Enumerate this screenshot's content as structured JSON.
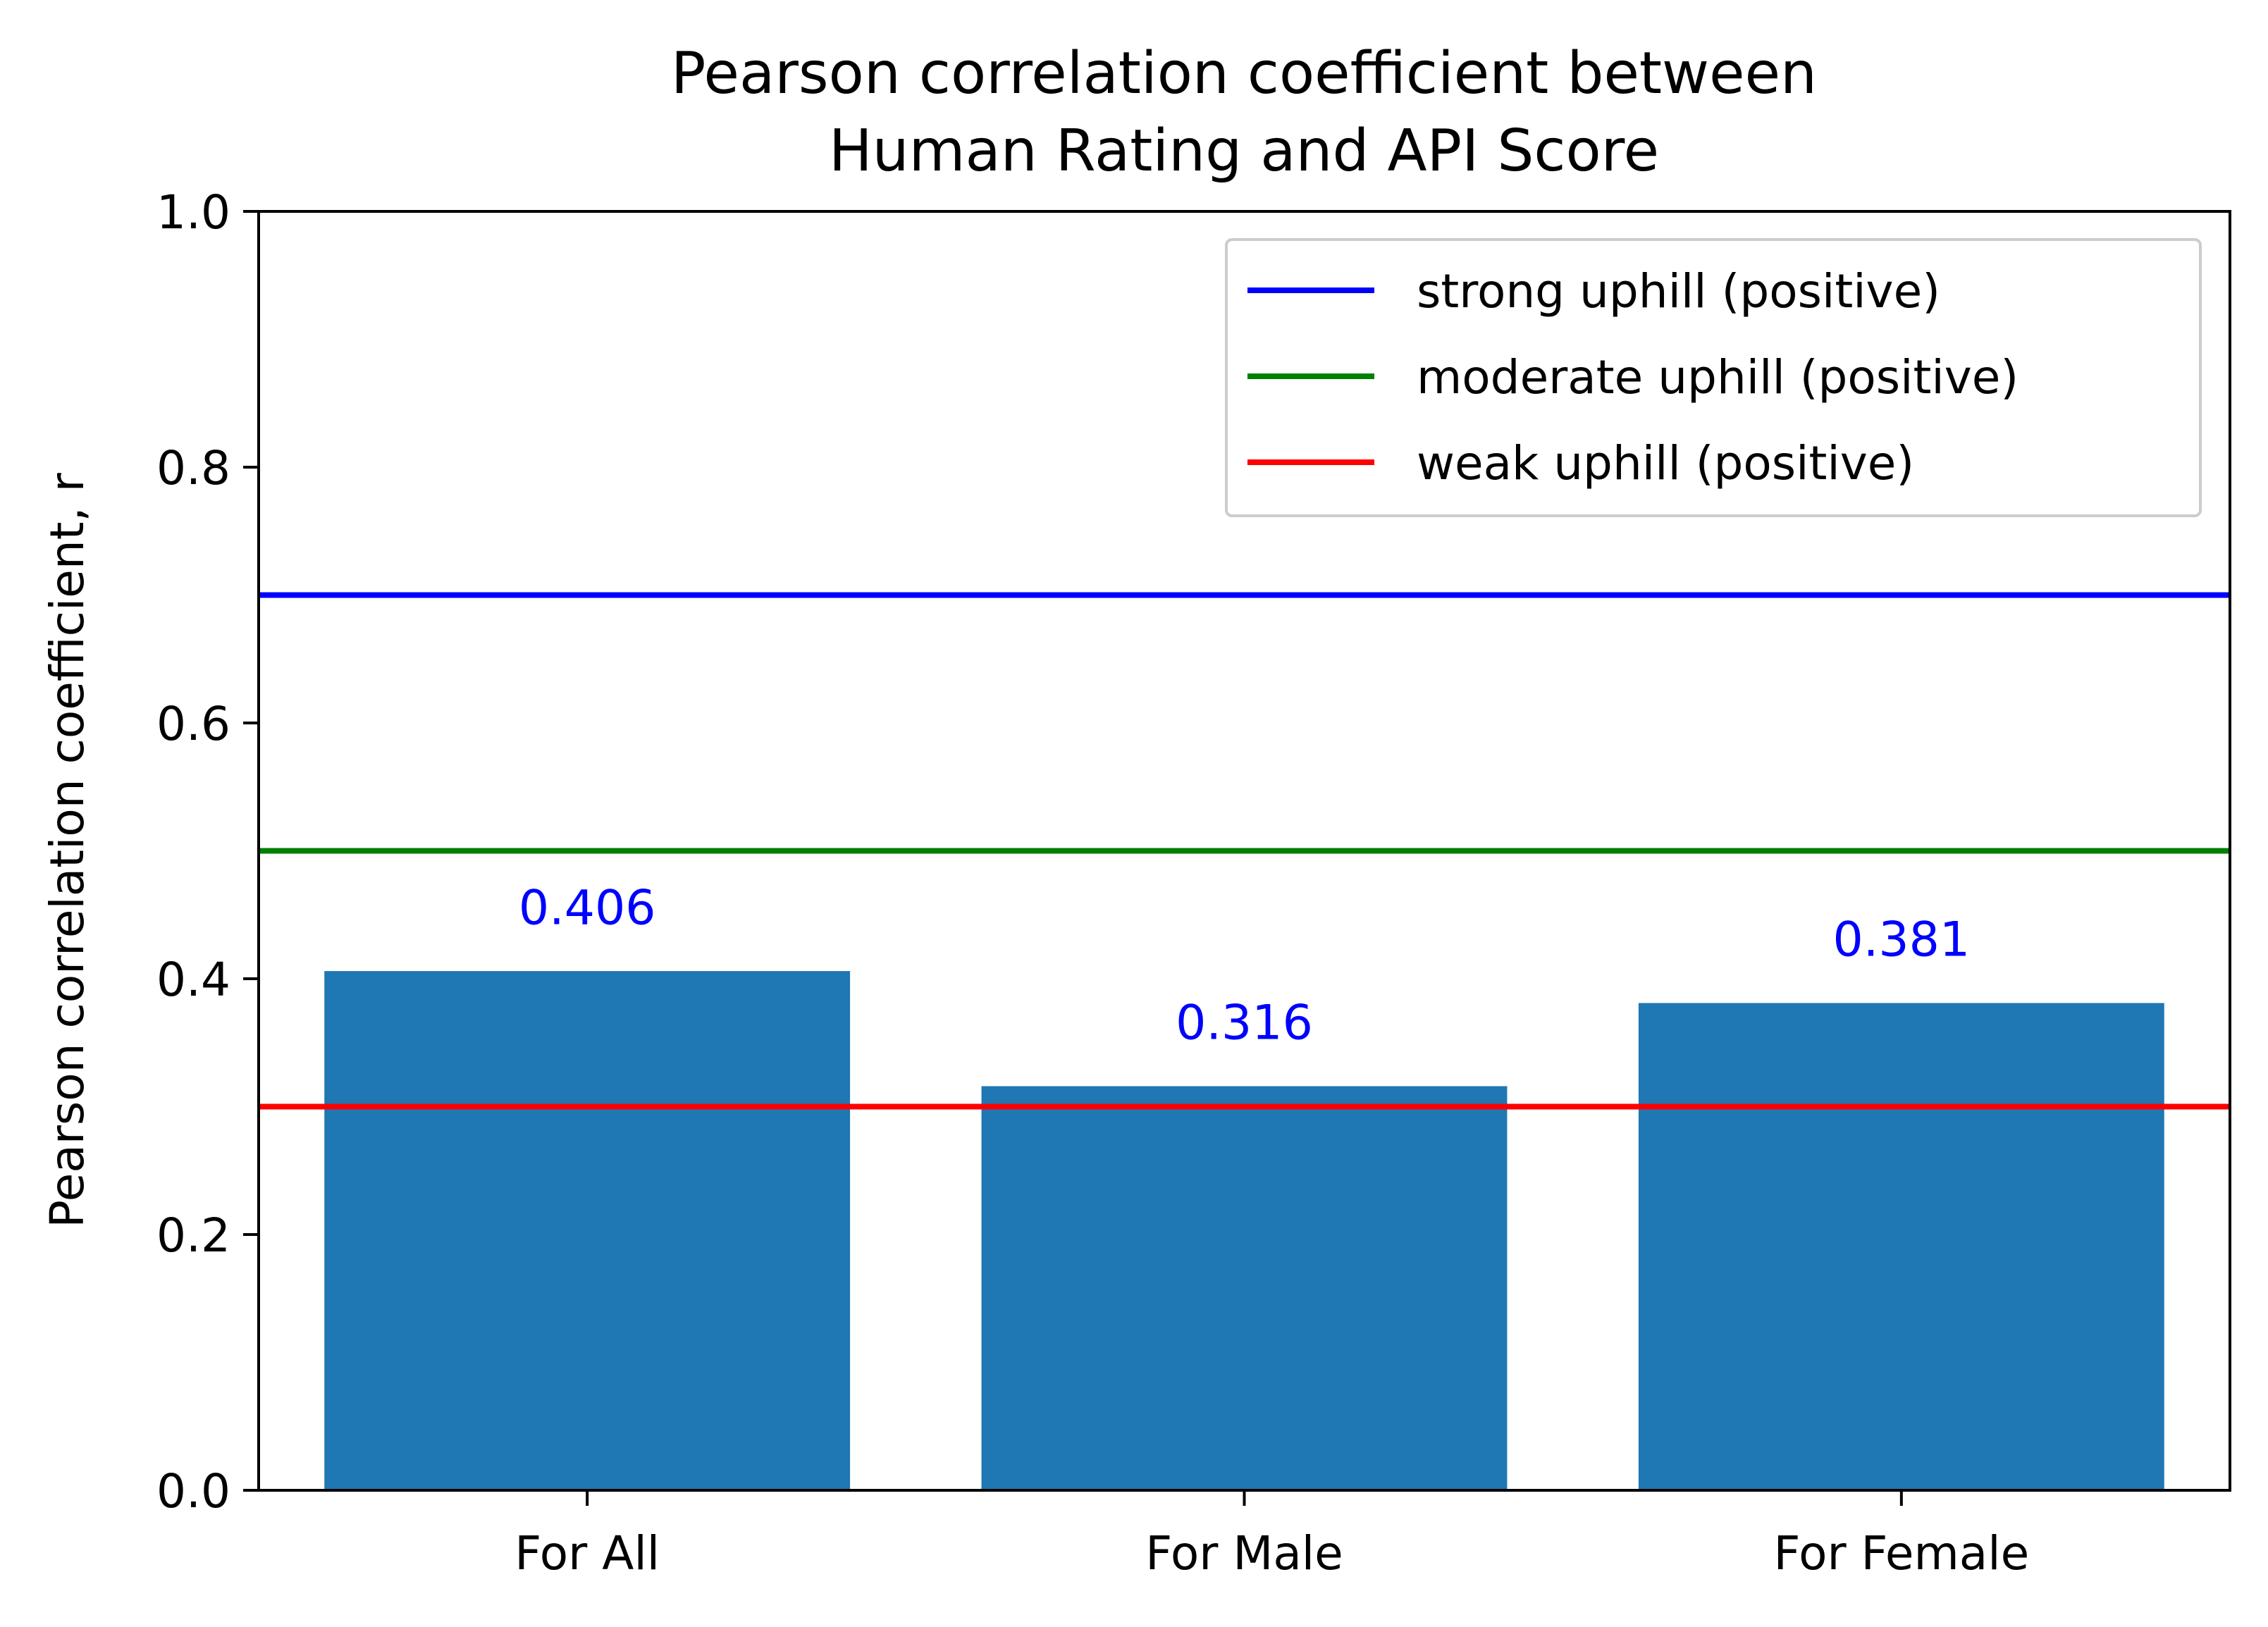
{
  "chart_data": {
    "type": "bar",
    "title_lines": [
      "Pearson correlation coefficient between",
      "Human Rating and API Score"
    ],
    "xlabel": "",
    "ylabel": "Pearson correlation coefficient, r",
    "categories": [
      "For All",
      "For Male",
      "For Female"
    ],
    "values": [
      0.406,
      0.316,
      0.381
    ],
    "value_labels": [
      "0.406",
      "0.316",
      "0.381"
    ],
    "bar_color": "#1f77b4",
    "value_label_color": "#0000ff",
    "ylim": [
      0.0,
      1.0
    ],
    "yticks": [
      0.0,
      0.2,
      0.4,
      0.6,
      0.8,
      1.0
    ],
    "ytick_labels": [
      "0.0",
      "0.2",
      "0.4",
      "0.6",
      "0.8",
      "1.0"
    ],
    "grid": false,
    "legend_position": "upper right",
    "reference_lines": [
      {
        "name": "strong uphill (positive)",
        "value": 0.7,
        "color": "#0000ff"
      },
      {
        "name": "moderate uphill (positive)",
        "value": 0.5,
        "color": "#008000"
      },
      {
        "name": "weak uphill (positive)",
        "value": 0.3,
        "color": "#ff0000"
      }
    ]
  }
}
